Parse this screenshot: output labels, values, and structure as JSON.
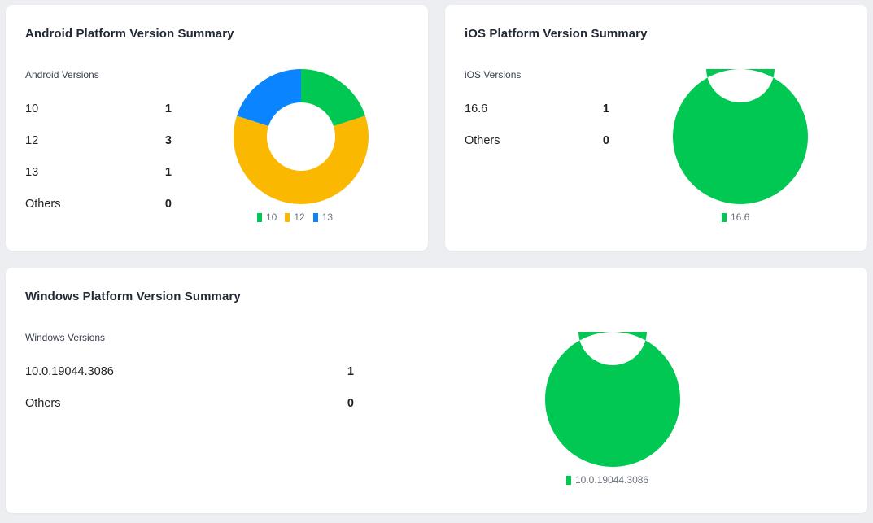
{
  "android": {
    "title": "Android Platform Version Summary",
    "list_header": "Android Versions",
    "rows": [
      {
        "label": "10",
        "count": "1"
      },
      {
        "label": "12",
        "count": "3"
      },
      {
        "label": "13",
        "count": "1"
      },
      {
        "label": "Others",
        "count": "0"
      }
    ],
    "legend": [
      {
        "label": "10",
        "color": "#00c853"
      },
      {
        "label": "12",
        "color": "#fbb800"
      },
      {
        "label": "13",
        "color": "#0a84ff"
      }
    ]
  },
  "ios": {
    "title": "iOS Platform Version Summary",
    "list_header": "iOS Versions",
    "rows": [
      {
        "label": "16.6",
        "count": "1"
      },
      {
        "label": "Others",
        "count": "0"
      }
    ],
    "legend": [
      {
        "label": "16.6",
        "color": "#00c853"
      }
    ]
  },
  "windows": {
    "title": "Windows Platform Version Summary",
    "list_header": "Windows Versions",
    "rows": [
      {
        "label": "10.0.19044.3086",
        "count": "1"
      },
      {
        "label": "Others",
        "count": "0"
      }
    ],
    "legend": [
      {
        "label": "10.0.19044.3086",
        "color": "#00c853"
      }
    ]
  },
  "chart_data": [
    {
      "type": "pie",
      "categories": [
        "10",
        "12",
        "13"
      ],
      "values": [
        1,
        3,
        1
      ],
      "colors": [
        "#00c853",
        "#fbb800",
        "#0a84ff"
      ],
      "donut": true,
      "legend": "bottom"
    },
    {
      "type": "pie",
      "categories": [
        "16.6"
      ],
      "values": [
        1
      ],
      "colors": [
        "#00c853"
      ],
      "donut": true,
      "legend": "bottom"
    },
    {
      "type": "pie",
      "categories": [
        "10.0.19044.3086"
      ],
      "values": [
        1
      ],
      "colors": [
        "#00c853"
      ],
      "donut": true,
      "legend": "bottom"
    }
  ]
}
